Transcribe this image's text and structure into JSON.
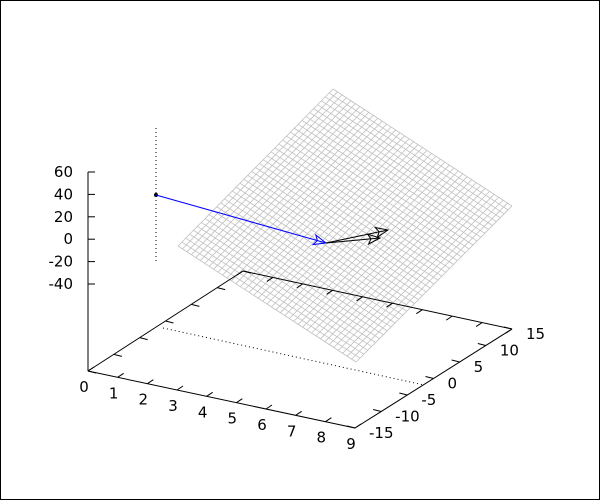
{
  "chart_data": {
    "type": "surface",
    "title": "",
    "xlabel": "",
    "ylabel": "",
    "zlabel": "",
    "x_ticks": [
      "0",
      "1",
      "2",
      "3",
      "4",
      "5",
      "6",
      "7",
      "8",
      "9"
    ],
    "y_ticks": [
      "-15",
      "-10",
      "-5",
      "0",
      "5",
      "10",
      "15"
    ],
    "z_ticks": [
      "60",
      "40",
      "20",
      "0",
      "-20",
      "-40"
    ],
    "xlim": [
      0,
      9
    ],
    "ylim": [
      -15,
      15
    ],
    "zlim": [
      -40,
      60
    ],
    "surface": {
      "style": "mesh",
      "color": "#c0c0c0"
    },
    "point": {
      "color": "#000000"
    },
    "arrows": [
      {
        "color": "#0000ff",
        "head": "open"
      },
      {
        "color": "#000000",
        "head": "open"
      },
      {
        "color": "#000000",
        "head": "open"
      }
    ]
  }
}
